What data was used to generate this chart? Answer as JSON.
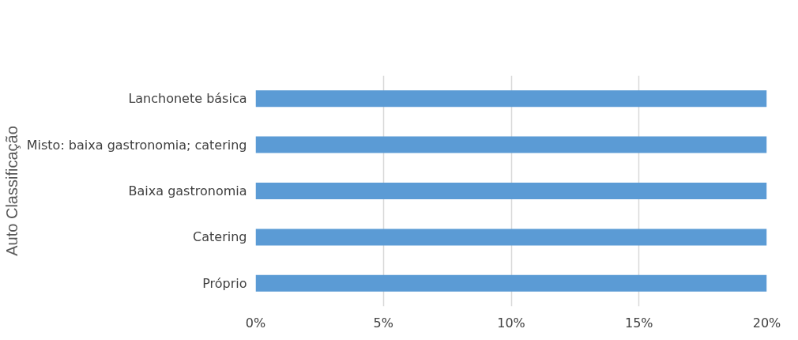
{
  "chart_data": {
    "type": "bar",
    "orientation": "horizontal",
    "ylabel": "Auto Classificação",
    "categories": [
      "Lanchonete básica",
      "Misto: baixa gastronomia; catering",
      "Baixa gastronomia",
      "Catering",
      "Próprio"
    ],
    "values": [
      20,
      20,
      20,
      20,
      20
    ],
    "color": "#5b9bd5",
    "xlim": [
      0,
      20
    ],
    "xticks": [
      {
        "value": 0,
        "label": "0%"
      },
      {
        "value": 5,
        "label": "5%"
      },
      {
        "value": 10,
        "label": "10%"
      },
      {
        "value": 15,
        "label": "15%"
      },
      {
        "value": 20,
        "label": "20%"
      }
    ],
    "grid": "x"
  }
}
